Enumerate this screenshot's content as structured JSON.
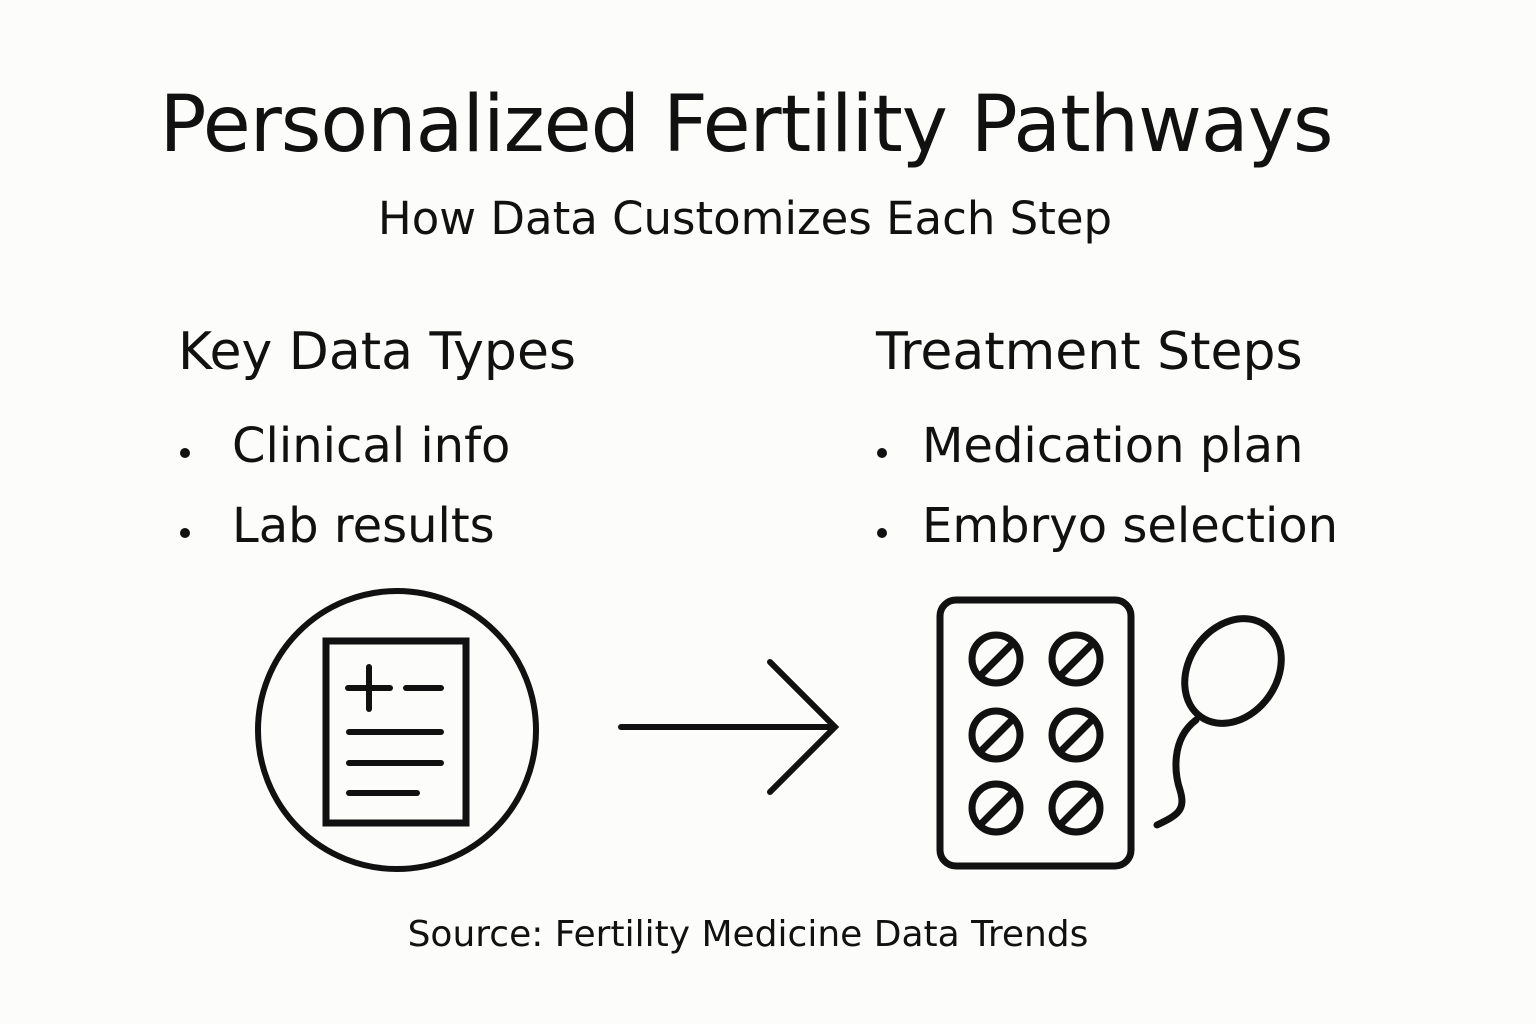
{
  "title": "Personalized Fertility Pathways",
  "subtitle": "How Data Customizes Each Step",
  "left": {
    "heading": "Key Data Types",
    "items": [
      "Clinical info",
      "Lab results"
    ],
    "icon": "medical-record-icon"
  },
  "right": {
    "heading": "Treatment Steps",
    "items": [
      "Medication plan",
      "Embryo selection"
    ],
    "icons": [
      "pill-pack-icon",
      "sperm-icon"
    ]
  },
  "arrow": "arrow-right-icon",
  "source": "Source: Fertility Medicine Data Trends"
}
